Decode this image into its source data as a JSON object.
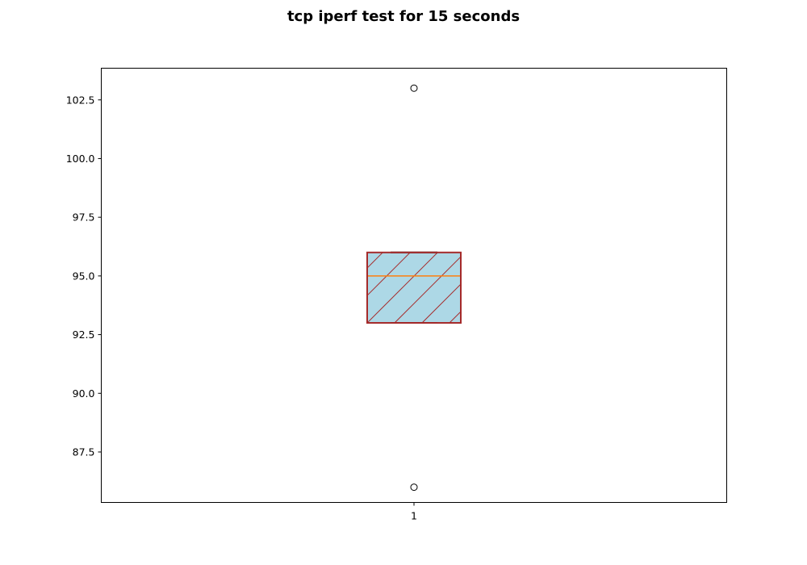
{
  "chart_data": {
    "type": "box",
    "title": "tcp iperf test for 15 seconds",
    "xlabel": "",
    "ylabel": "",
    "categories": [
      "1"
    ],
    "ylim": [
      85.35,
      103.85
    ],
    "yticks": [
      87.5,
      90.0,
      92.5,
      95.0,
      97.5,
      100.0,
      102.5
    ],
    "ytick_labels": [
      "87.5",
      "90.0",
      "92.5",
      "95.0",
      "97.5",
      "100.0",
      "102.5"
    ],
    "boxes": [
      {
        "category": "1",
        "q1": 93.0,
        "median": 95.0,
        "q3": 96.0,
        "whisker_low": 93.0,
        "whisker_high": 96.0,
        "outliers": [
          86.0,
          103.0
        ]
      }
    ],
    "grid": false,
    "colors": {
      "box_fill": "#add8e6",
      "box_edge": "#a52a2a",
      "hatch": "#a52a2a",
      "median": "#ff7f0e",
      "whisker": "#000000"
    }
  }
}
